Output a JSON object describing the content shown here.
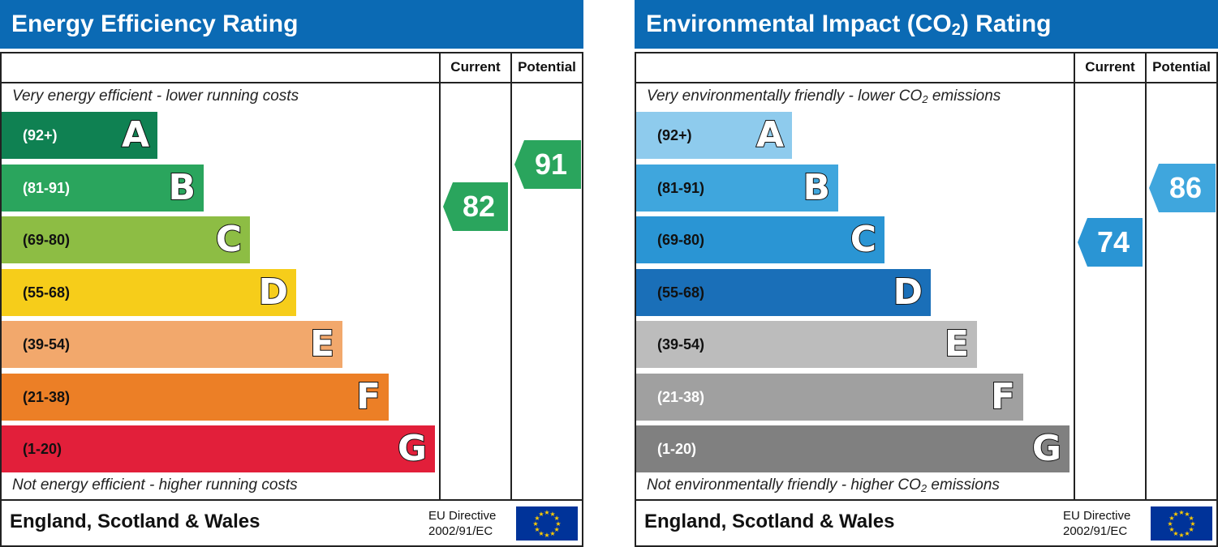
{
  "chart_data": [
    {
      "type": "bar",
      "title": "Energy Efficiency Rating",
      "columns": [
        "Current",
        "Potential"
      ],
      "top_caption": "Very energy efficient - lower running costs",
      "bottom_caption": "Not energy efficient - higher running costs",
      "bands": [
        {
          "letter": "A",
          "range": "(92+)",
          "color": "#0f8152",
          "text_color": "#ffffff"
        },
        {
          "letter": "B",
          "range": "(81-91)",
          "color": "#2aa55d",
          "text_color": "#ffffff"
        },
        {
          "letter": "C",
          "range": "(69-80)",
          "color": "#8dbd44",
          "text_color": "#111111"
        },
        {
          "letter": "D",
          "range": "(55-68)",
          "color": "#f6cd1a",
          "text_color": "#111111"
        },
        {
          "letter": "E",
          "range": "(39-54)",
          "color": "#f2a86c",
          "text_color": "#111111"
        },
        {
          "letter": "F",
          "range": "(21-38)",
          "color": "#ec7f26",
          "text_color": "#111111"
        },
        {
          "letter": "G",
          "range": "(1-20)",
          "color": "#e21f3a",
          "text_color": "#111111"
        }
      ],
      "current": {
        "value": 82,
        "color": "#2aa55d"
      },
      "potential": {
        "value": 91,
        "color": "#2aa55d"
      },
      "footer": {
        "region": "England, Scotland & Wales",
        "directive_line1": "EU Directive",
        "directive_line2": "2002/91/EC"
      }
    },
    {
      "type": "bar",
      "title": "Environmental Impact (CO",
      "title_sub": "2",
      "title_end": ") Rating",
      "columns": [
        "Current",
        "Potential"
      ],
      "top_caption": "Very environmentally friendly - lower CO",
      "top_caption_sub": "2",
      "top_caption_end": " emissions",
      "bottom_caption": "Not environmentally friendly - higher CO",
      "bottom_caption_sub": "2",
      "bottom_caption_end": " emissions",
      "bands": [
        {
          "letter": "A",
          "range": "(92+)",
          "color": "#8ecbed",
          "text_color": "#111111"
        },
        {
          "letter": "B",
          "range": "(81-91)",
          "color": "#3fa6dd",
          "text_color": "#111111"
        },
        {
          "letter": "C",
          "range": "(69-80)",
          "color": "#2a95d4",
          "text_color": "#111111"
        },
        {
          "letter": "D",
          "range": "(55-68)",
          "color": "#1a6fb8",
          "text_color": "#111111"
        },
        {
          "letter": "E",
          "range": "(39-54)",
          "color": "#bcbcbc",
          "text_color": "#111111"
        },
        {
          "letter": "F",
          "range": "(21-38)",
          "color": "#a0a0a0",
          "text_color": "#ffffff"
        },
        {
          "letter": "G",
          "range": "(1-20)",
          "color": "#808080",
          "text_color": "#ffffff"
        }
      ],
      "current": {
        "value": 74,
        "color": "#2a95d4"
      },
      "potential": {
        "value": 86,
        "color": "#3fa6dd"
      },
      "footer": {
        "region": "England, Scotland & Wales",
        "directive_line1": "EU Directive",
        "directive_line2": "2002/91/EC"
      }
    }
  ]
}
